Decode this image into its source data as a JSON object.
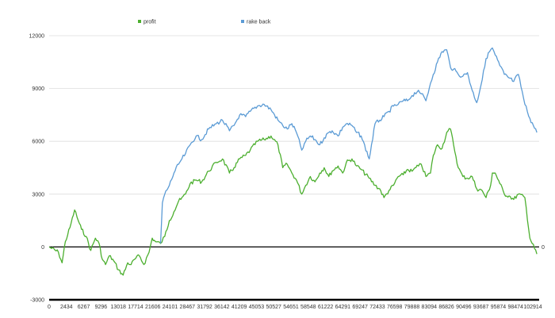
{
  "chart_data": {
    "type": "line",
    "title": "",
    "xlabel": "",
    "ylabel": "",
    "ylim": [
      -3000,
      12000
    ],
    "yticks": [
      "12000",
      "9000",
      "6000",
      "3000",
      "0",
      "-3000"
    ],
    "xlim": [
      0,
      106000
    ],
    "xticks": [
      "0",
      "2434",
      "6267",
      "9296",
      "13018",
      "17714",
      "21606",
      "24101",
      "28467",
      "31792",
      "36142",
      "41209",
      "45053",
      "50527",
      "54651",
      "58548",
      "61222",
      "64291",
      "69247",
      "72433",
      "76598",
      "79888",
      "83094",
      "86826",
      "90496",
      "93687",
      "95874",
      "98474",
      "102914"
    ],
    "grid": "horizontal",
    "legend": "top-left",
    "annotations": [
      {
        "text": "0",
        "y": 0
      }
    ],
    "series": [
      {
        "name": "profit",
        "color": "#4caf2f",
        "x": [
          0,
          2000,
          2800,
          3500,
          4500,
          5500,
          6300,
          7000,
          8000,
          9000,
          10000,
          10800,
          11500,
          12200,
          13018,
          14000,
          15000,
          16000,
          17000,
          17714,
          18500,
          19500,
          20500,
          21606,
          22300,
          23000,
          24101,
          25000,
          26000,
          27000,
          28000,
          28467,
          29500,
          30500,
          31792,
          33000,
          34500,
          36142,
          37500,
          39000,
          40000,
          41209,
          42500,
          43500,
          45053,
          46500,
          48000,
          49500,
          50527,
          51500,
          52500,
          53500,
          54651,
          55500,
          56500,
          57500,
          58548,
          59500,
          60500,
          61222,
          62500,
          63500,
          64291,
          65500,
          66500,
          67500,
          69247,
          70500,
          71500,
          72433,
          73500,
          74500,
          75500,
          76598,
          77500,
          78500,
          79888,
          80500,
          81500,
          82500,
          83094,
          84000,
          85000,
          86000,
          86826,
          87500,
          88500,
          89500,
          90496,
          91500,
          92500,
          93687,
          94500,
          95500,
          95874,
          96500,
          97500,
          98474,
          99500,
          100500,
          101500,
          102914,
          104000,
          105500
        ],
        "values": [
          0,
          -300,
          -900,
          300,
          1100,
          2100,
          1500,
          1000,
          600,
          -200,
          500,
          200,
          -700,
          -1000,
          -500,
          -800,
          -1300,
          -1600,
          -900,
          -1000,
          -700,
          -500,
          -1000,
          -300,
          500,
          300,
          200,
          600,
          1500,
          2000,
          2600,
          2700,
          3000,
          3600,
          3800,
          3700,
          4300,
          4800,
          5000,
          4200,
          4500,
          5000,
          5200,
          5500,
          6000,
          6100,
          6300,
          5800,
          4500,
          4700,
          4200,
          3800,
          3000,
          3500,
          4000,
          3700,
          4200,
          4500,
          4000,
          4300,
          4600,
          4200,
          4800,
          5000,
          4600,
          4400,
          3900,
          3500,
          3300,
          2800,
          3200,
          3500,
          4000,
          4100,
          4400,
          4300,
          4600,
          4700,
          4000,
          4200,
          5200,
          5800,
          5600,
          6500,
          6700,
          5800,
          4500,
          4000,
          3900,
          4000,
          3300,
          3200,
          2800,
          3500,
          4200,
          4200,
          3600,
          3000,
          2900,
          2700,
          3000,
          2800,
          500,
          -400
        ]
      },
      {
        "name": "rake back",
        "color": "#5b9bd5",
        "x": [
          24101,
          24500,
          25000,
          26000,
          27000,
          28000,
          28467,
          29500,
          30500,
          31792,
          33000,
          34500,
          36142,
          37500,
          39000,
          40000,
          41209,
          42500,
          43500,
          45053,
          46500,
          48000,
          49500,
          50527,
          51500,
          52500,
          53500,
          54651,
          55500,
          56500,
          57500,
          58548,
          59500,
          60500,
          61222,
          62500,
          63500,
          64291,
          65500,
          66500,
          67500,
          69247,
          70500,
          71500,
          72433,
          73500,
          74500,
          75500,
          76598,
          77500,
          78500,
          79888,
          80500,
          81500,
          82500,
          83094,
          84000,
          85000,
          86000,
          86826,
          87500,
          88500,
          89500,
          90496,
          91500,
          92500,
          93687,
          94500,
          95500,
          95874,
          96500,
          97500,
          98474,
          99500,
          100500,
          101500,
          102914,
          104000,
          105500
        ],
        "values": [
          200,
          2500,
          3000,
          3500,
          4200,
          4700,
          4900,
          5300,
          5800,
          6300,
          6100,
          6700,
          7000,
          7200,
          6600,
          6900,
          7500,
          7400,
          7700,
          8000,
          8100,
          7800,
          7200,
          6900,
          6700,
          7000,
          6500,
          5500,
          6000,
          6300,
          6100,
          5800,
          6200,
          6500,
          6600,
          6300,
          6800,
          7000,
          6900,
          6500,
          6300,
          5000,
          7000,
          7200,
          7400,
          7700,
          8000,
          8100,
          8300,
          8300,
          8600,
          8900,
          8700,
          8300,
          9300,
          9800,
          10500,
          11100,
          11200,
          10200,
          10100,
          9800,
          9700,
          9900,
          8900,
          8200,
          9500,
          10700,
          11200,
          11300,
          10900,
          10300,
          9800,
          9600,
          9400,
          9800,
          8100,
          7300,
          6500
        ]
      }
    ]
  }
}
